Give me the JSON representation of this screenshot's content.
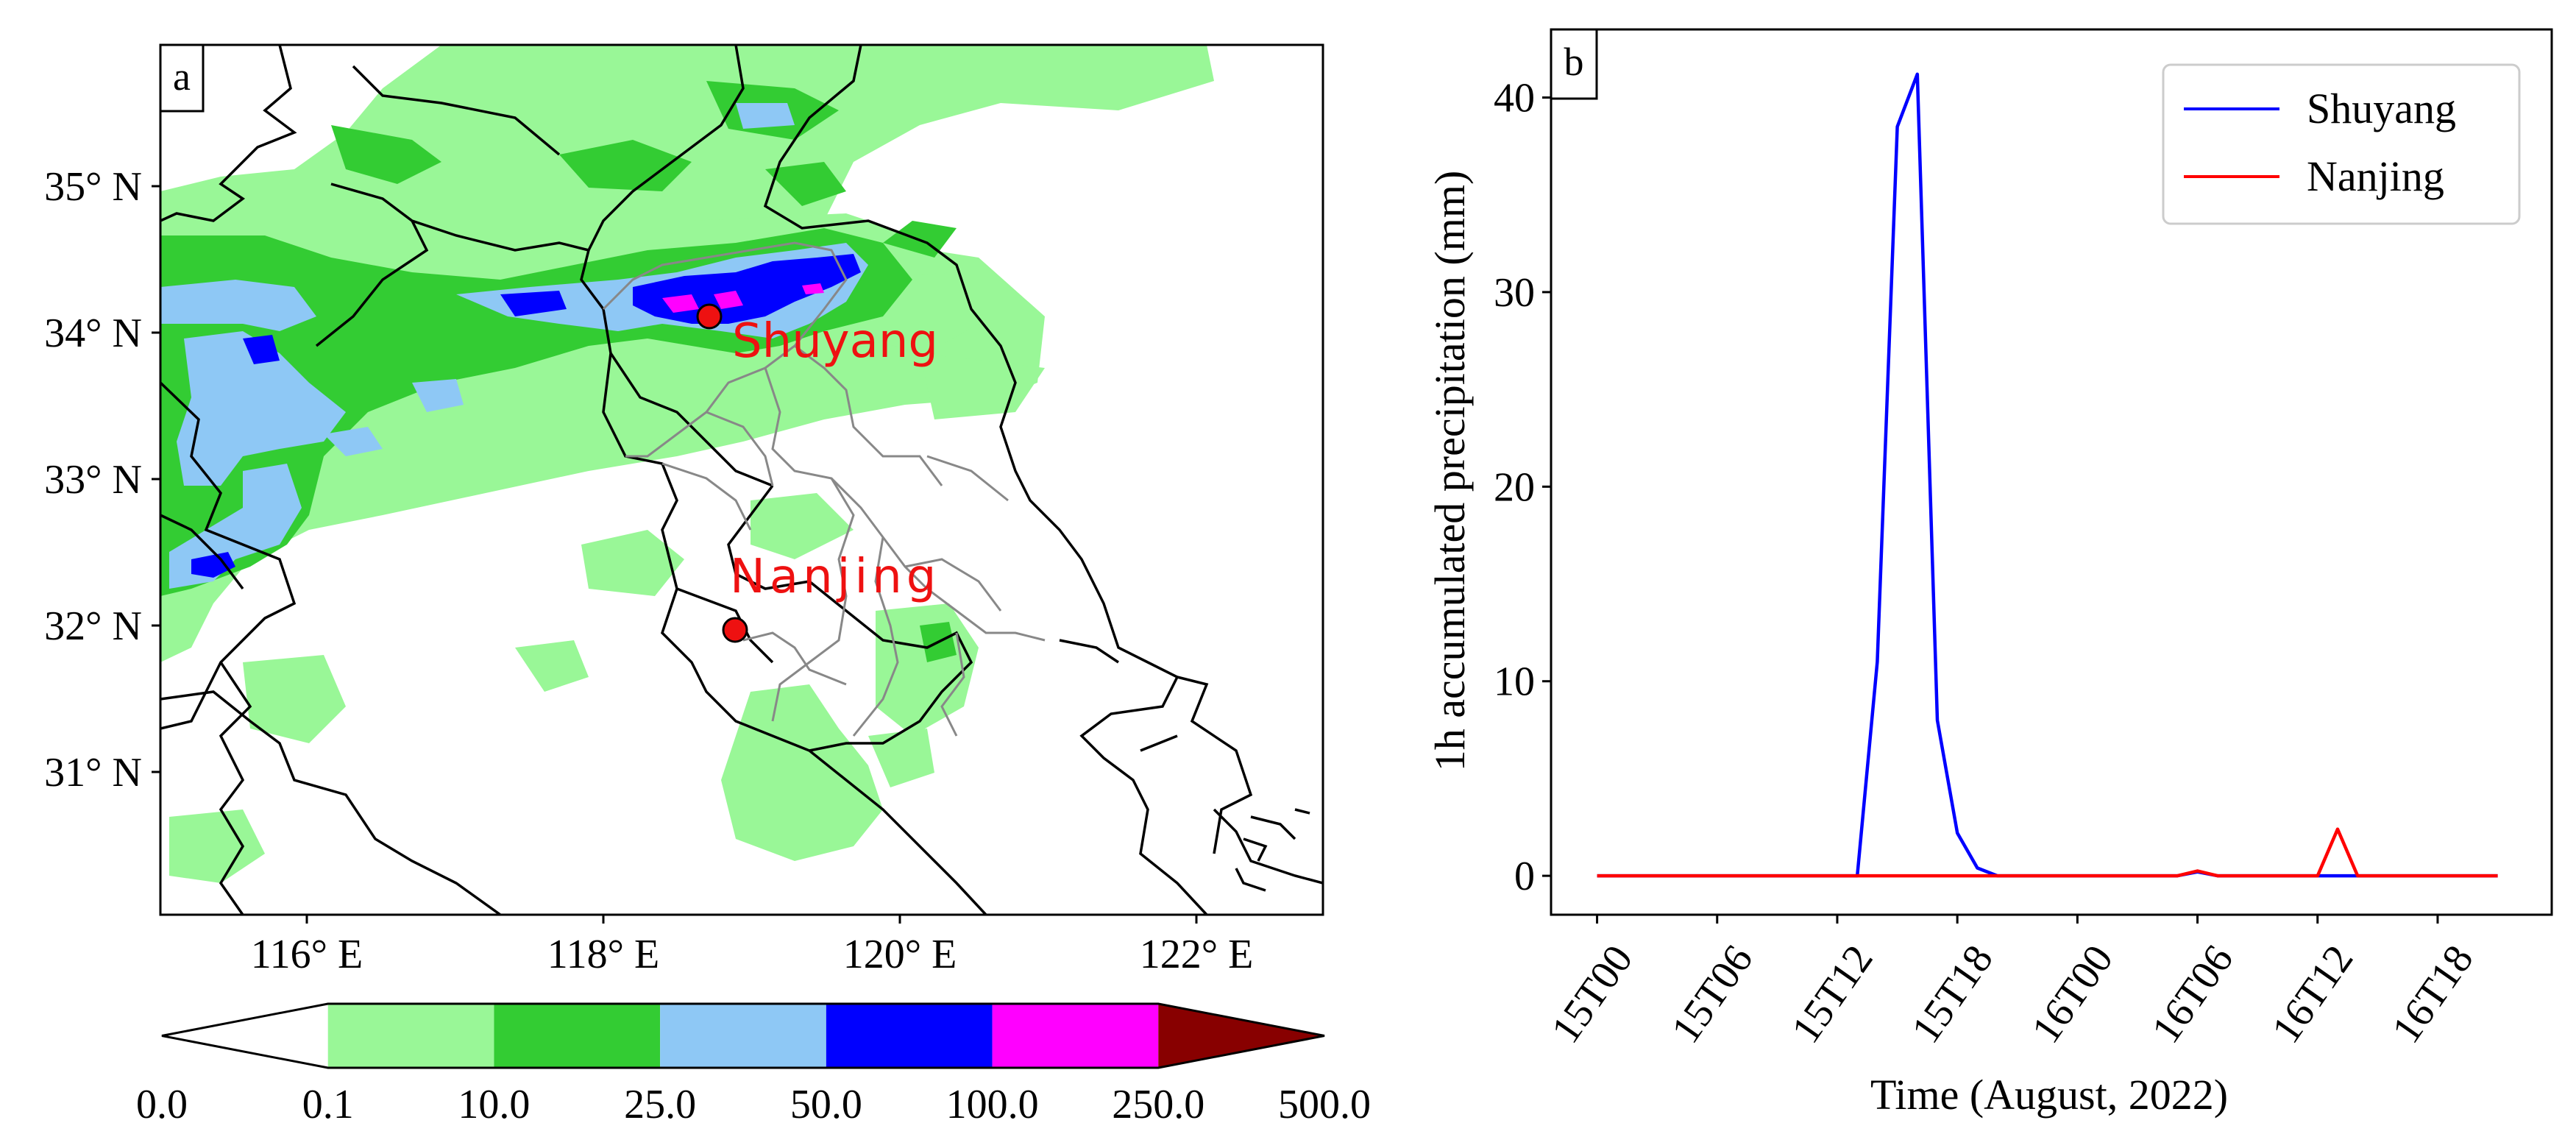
{
  "panel_a": {
    "label": "a",
    "lat_ticks": [
      "35° N",
      "34° N",
      "33° N",
      "32° N",
      "31° N"
    ],
    "lon_ticks": [
      "116° E",
      "118° E",
      "120° E",
      "122° E"
    ],
    "stations": [
      {
        "name": "Shuyang",
        "marker_color": "#ee1111"
      },
      {
        "name": "Nanjing",
        "marker_color": "#ee1111"
      }
    ],
    "colorbar": {
      "bounds": [
        "0.0",
        "0.1",
        "10.0",
        "25.0",
        "50.0",
        "100.0",
        "250.0",
        "500.0"
      ],
      "colors": [
        "#ffffff",
        "#99f797",
        "#33cc33",
        "#8ec8f5",
        "#0000ff",
        "#ff00ff",
        "#880000"
      ]
    },
    "colors": {
      "light_green": "#99f797",
      "green": "#33cc33",
      "light_blue": "#8ec8f5",
      "blue": "#0000ff",
      "magenta": "#ff00ff",
      "boundary": "#000000",
      "inner_boundary": "#888888",
      "station_label": "#ee1111"
    }
  },
  "chart_data": {
    "type": "line",
    "panel_label": "b",
    "title": "",
    "xlabel": "Time (August, 2022)",
    "ylabel": "1h accumulated precipitation (mm)",
    "x_ticks": [
      "15T00",
      "15T06",
      "15T12",
      "15T18",
      "16T00",
      "16T06",
      "16T12",
      "16T18"
    ],
    "x_tick_hours": [
      0,
      6,
      12,
      18,
      24,
      30,
      36,
      42
    ],
    "xlim": [
      -2.3,
      47.7
    ],
    "ylim": [
      -2,
      43.5
    ],
    "y_ticks": [
      0,
      10,
      20,
      30,
      40
    ],
    "legend_position": "top-right",
    "series": [
      {
        "name": "Shuyang",
        "color": "#0000ff",
        "x": [
          0,
          1,
          2,
          3,
          4,
          5,
          6,
          7,
          8,
          9,
          10,
          11,
          12,
          13,
          14,
          15,
          16,
          17,
          18,
          19,
          20,
          21,
          22,
          23,
          24,
          25,
          26,
          27,
          28,
          29,
          30,
          31,
          32,
          33,
          34,
          35,
          36,
          37,
          38,
          39,
          40,
          41,
          42,
          43,
          44,
          45
        ],
        "values": [
          0,
          0,
          0,
          0,
          0,
          0,
          0,
          0,
          0,
          0,
          0,
          0,
          0,
          0,
          11,
          38.5,
          41.2,
          8,
          2.2,
          0.4,
          0,
          0,
          0,
          0,
          0,
          0,
          0,
          0,
          0,
          0,
          0.2,
          0,
          0,
          0,
          0,
          0,
          0,
          0,
          0,
          0,
          0,
          0,
          0,
          0,
          0,
          0
        ]
      },
      {
        "name": "Nanjing",
        "color": "#ff0000",
        "x": [
          0,
          1,
          2,
          3,
          4,
          5,
          6,
          7,
          8,
          9,
          10,
          11,
          12,
          13,
          14,
          15,
          16,
          17,
          18,
          19,
          20,
          21,
          22,
          23,
          24,
          25,
          26,
          27,
          28,
          29,
          30,
          31,
          32,
          33,
          34,
          35,
          36,
          37,
          38,
          39,
          40,
          41,
          42,
          43,
          44,
          45
        ],
        "values": [
          0,
          0,
          0,
          0,
          0,
          0,
          0,
          0,
          0,
          0,
          0,
          0,
          0,
          0,
          0,
          0,
          0,
          0,
          0,
          0,
          0,
          0,
          0,
          0,
          0,
          0,
          0,
          0,
          0,
          0,
          0.25,
          0,
          0,
          0,
          0,
          0,
          0,
          2.4,
          0,
          0,
          0,
          0,
          0,
          0,
          0,
          0
        ]
      }
    ]
  }
}
